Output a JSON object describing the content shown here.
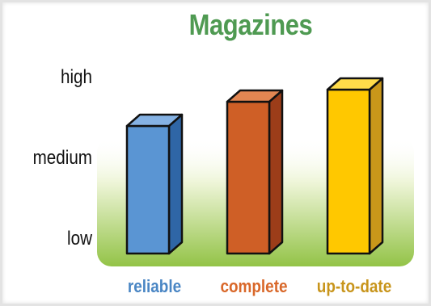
{
  "chart_data": {
    "type": "bar",
    "title": "Magazines",
    "categories": [
      "reliable",
      "complete",
      "up-to-date"
    ],
    "values": [
      2.4,
      2.7,
      2.85
    ],
    "y_tick_labels": [
      "low",
      "medium",
      "high"
    ],
    "ylim": [
      1,
      3
    ],
    "colors": {
      "title": "#4f9a52",
      "category_labels": [
        "#4a86c4",
        "#d9682a",
        "#c8951c"
      ],
      "bar_front": [
        "#5a95d3",
        "#cf5f26",
        "#ffc800"
      ],
      "bar_side": [
        "#2f66a6",
        "#9c3d19",
        "#c9971a"
      ],
      "bar_top": [
        "#85b2e4",
        "#e28652",
        "#ffdc4a"
      ],
      "background_band_top": "#ffffff",
      "background_band_bottom": "#93c347"
    },
    "grid": false,
    "legend": "none"
  }
}
